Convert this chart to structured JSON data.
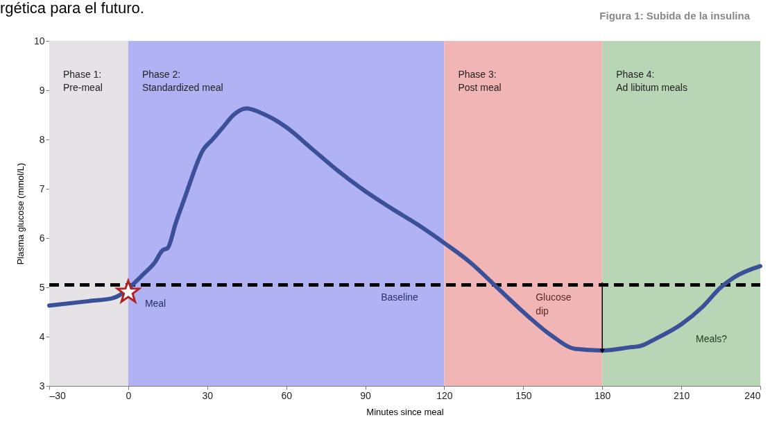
{
  "chart_data": {
    "type": "line",
    "title": "Figura 1: Subida de la insulina",
    "xlabel": "Minutes since meal",
    "ylabel": "Plasma glucose (mmol/L)",
    "x": [
      -30,
      -15,
      -6,
      6,
      10,
      13,
      15,
      18,
      22,
      26,
      28,
      32,
      36,
      40,
      45,
      50,
      55,
      60,
      70,
      80,
      90,
      100,
      110,
      120,
      130,
      140,
      150,
      160,
      170,
      180,
      190,
      195,
      200,
      210,
      218,
      225,
      230,
      240
    ],
    "series": [
      {
        "color": "#3a5199",
        "values": [
          4.63,
          4.72,
          4.78,
          5.28,
          5.5,
          5.75,
          5.8,
          6.3,
          6.9,
          7.5,
          7.75,
          8.0,
          8.25,
          8.5,
          8.63,
          8.55,
          8.42,
          8.25,
          7.8,
          7.35,
          6.95,
          6.6,
          6.27,
          5.9,
          5.5,
          5.0,
          4.5,
          4.05,
          3.75,
          3.72,
          3.78,
          3.82,
          3.95,
          4.25,
          4.6,
          5.0,
          5.2,
          5.43
        ]
      },
      {
        "type": "scatter",
        "marker": "star",
        "color": "#b22222",
        "x": [
          0
        ],
        "values": [
          4.9
        ]
      }
    ],
    "xlim": [
      -30,
      240
    ],
    "ylim": [
      3,
      10
    ],
    "xticks": [
      {
        "value": -30,
        "label": "–30"
      },
      0,
      30,
      60,
      90,
      120,
      150,
      180,
      210,
      240
    ],
    "yticks": [
      3,
      4,
      5,
      6,
      7,
      8,
      9,
      10
    ],
    "grid": false,
    "marker": "none",
    "line_style": "solid",
    "ref_lines": [
      {
        "axis": "y",
        "value": 5.05,
        "label": "Baseline",
        "color": "#000000",
        "line_style": "dashed"
      }
    ],
    "bands": [
      {
        "axis": "x",
        "from": -30,
        "to": 0,
        "label": "Phase 1:\nPre-meal",
        "color": "#e5e3e5"
      },
      {
        "axis": "x",
        "from": 0,
        "to": 120,
        "label": "Phase 2:\nStandardized meal",
        "color": "#b0b2f4"
      },
      {
        "axis": "x",
        "from": 120,
        "to": 180,
        "label": "Phase 3:\nPost meal",
        "color": "#f2b5b5"
      },
      {
        "axis": "x",
        "from": 180,
        "to": 240,
        "label": "Phase 4:\nAd libitum meals",
        "color": "#b8d6b6"
      }
    ],
    "annotations": [
      "rgética para el futuro.",
      {
        "text": "Meal",
        "x": 0,
        "y": 4.9
      },
      "Glucose\ndip",
      "Meals?"
    ]
  }
}
